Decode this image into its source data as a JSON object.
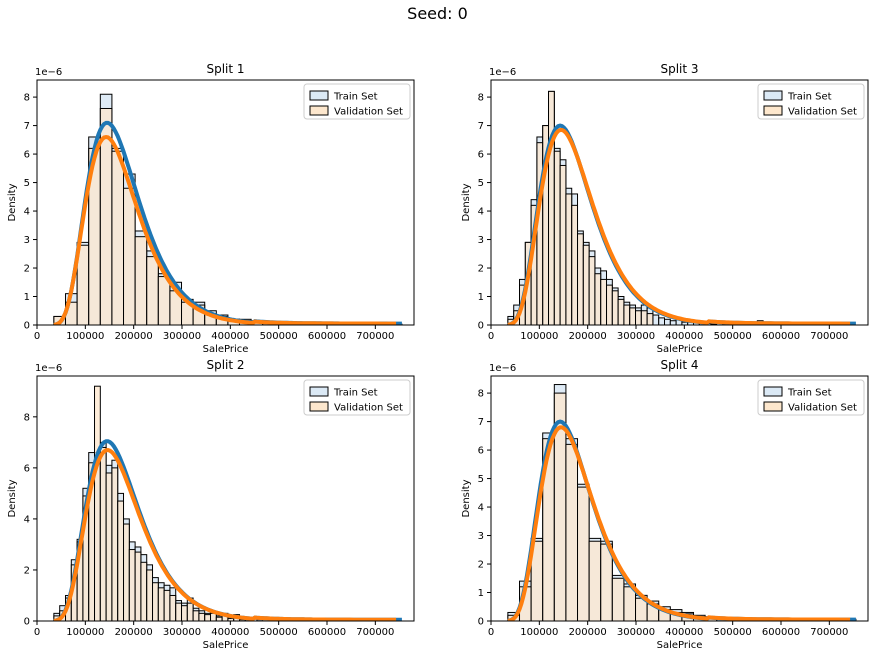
{
  "suptitle": "Seed: 0",
  "colors": {
    "train_fill": "#dbe9f5",
    "validation_fill": "#fde7cd",
    "overlap_fill": "#e5dccf",
    "train_line": "#1f77b4",
    "validation_line": "#ff7f0e"
  },
  "chart_data": [
    {
      "type": "histogram",
      "title": "Split 1",
      "xlabel": "SalePrice",
      "ylabel": "Density",
      "y_offset_text": "1e−6",
      "xlim": [
        0,
        780000
      ],
      "ylim": [
        0,
        8.6
      ],
      "xticks": [
        0,
        100000,
        200000,
        300000,
        400000,
        500000,
        600000,
        700000
      ],
      "yticks": [
        0,
        1,
        2,
        3,
        4,
        5,
        6,
        7,
        8
      ],
      "legend": {
        "position": "top-right",
        "entries": [
          "Train Set",
          "Validation Set"
        ]
      },
      "train_hist": {
        "bins": [
          [
            34900,
            0.3
          ],
          [
            59000,
            1.1
          ],
          [
            83000,
            2.9
          ],
          [
            107000,
            6.6
          ],
          [
            131000,
            8.1
          ],
          [
            155000,
            6.2
          ],
          [
            179000,
            5.3
          ],
          [
            203000,
            3.3
          ],
          [
            227000,
            2.6
          ],
          [
            251000,
            1.8
          ],
          [
            275000,
            1.5
          ],
          [
            299000,
            0.9
          ],
          [
            323000,
            0.8
          ],
          [
            347000,
            0.5
          ],
          [
            371000,
            0.35
          ],
          [
            395000,
            0.2
          ],
          [
            419000,
            0.2
          ],
          [
            443000,
            0.15
          ],
          [
            467000,
            0.05
          ],
          [
            491000,
            0.04
          ],
          [
            515000,
            0.02
          ],
          [
            539000,
            0.02
          ],
          [
            563000,
            0.02
          ],
          [
            587000,
            0.04
          ],
          [
            611000,
            0.02
          ],
          [
            635000,
            0.02
          ],
          [
            659000,
            0.0
          ],
          [
            683000,
            0.0
          ],
          [
            707000,
            0.02
          ],
          [
            731000,
            0.03
          ]
        ],
        "width": 24000
      },
      "validation_hist": {
        "bins": [
          [
            34900,
            0.3
          ],
          [
            59000,
            0.8
          ],
          [
            83000,
            2.8
          ],
          [
            107000,
            6.2
          ],
          [
            131000,
            7.6
          ],
          [
            155000,
            6.1
          ],
          [
            179000,
            4.8
          ],
          [
            203000,
            3.1
          ],
          [
            227000,
            2.4
          ],
          [
            251000,
            1.7
          ],
          [
            275000,
            1.2
          ],
          [
            299000,
            0.8
          ],
          [
            323000,
            0.7
          ],
          [
            347000,
            0.4
          ],
          [
            371000,
            0.3
          ],
          [
            395000,
            0.2
          ],
          [
            419000,
            0.15
          ],
          [
            443000,
            0.1
          ],
          [
            467000,
            0.05
          ],
          [
            491000,
            0.05
          ]
        ],
        "width": 24000
      },
      "train_kde": {
        "peak": 7.1,
        "mode": 145000
      },
      "validation_kde": {
        "peak": 6.6,
        "mode": 143000
      }
    },
    {
      "type": "histogram",
      "title": "Split 3",
      "xlabel": "SalePrice",
      "ylabel": "Density",
      "y_offset_text": "1e−6",
      "xlim": [
        0,
        780000
      ],
      "ylim": [
        0,
        8.6
      ],
      "xticks": [
        0,
        100000,
        200000,
        300000,
        400000,
        500000,
        600000,
        700000
      ],
      "yticks": [
        0,
        1,
        2,
        3,
        4,
        5,
        6,
        7,
        8
      ],
      "legend": {
        "position": "top-right",
        "entries": [
          "Train Set",
          "Validation Set"
        ]
      },
      "train_hist": {
        "bins": [
          [
            34900,
            0.3
          ],
          [
            47000,
            0.7
          ],
          [
            59000,
            1.6
          ],
          [
            71000,
            2.9
          ],
          [
            83000,
            4.4
          ],
          [
            95000,
            6.6
          ],
          [
            107000,
            7.0
          ],
          [
            119000,
            8.2
          ],
          [
            131000,
            6.2
          ],
          [
            143000,
            5.8
          ],
          [
            155000,
            4.8
          ],
          [
            167000,
            4.6
          ],
          [
            179000,
            3.3
          ],
          [
            191000,
            2.9
          ],
          [
            203000,
            2.6
          ],
          [
            215000,
            2.0
          ],
          [
            227000,
            1.9
          ],
          [
            239000,
            1.6
          ],
          [
            251000,
            1.3
          ],
          [
            263000,
            1.0
          ],
          [
            275000,
            0.8
          ],
          [
            287000,
            0.7
          ],
          [
            299000,
            0.6
          ],
          [
            311000,
            0.7
          ],
          [
            323000,
            0.6
          ],
          [
            335000,
            0.35
          ],
          [
            347000,
            0.25
          ],
          [
            359000,
            0.2
          ],
          [
            371000,
            0.15
          ],
          [
            383000,
            0.2
          ],
          [
            395000,
            0.1
          ],
          [
            407000,
            0.1
          ],
          [
            419000,
            0.07
          ],
          [
            431000,
            0.05
          ],
          [
            443000,
            0.05
          ],
          [
            455000,
            0.03
          ],
          [
            479000,
            0.02
          ],
          [
            551000,
            0.15
          ],
          [
            575000,
            0.1
          ],
          [
            611000,
            0.03
          ],
          [
            731000,
            0.03
          ]
        ],
        "width": 12000
      },
      "validation_hist": {
        "bins": [
          [
            34900,
            0.2
          ],
          [
            47000,
            0.5
          ],
          [
            59000,
            1.4
          ],
          [
            71000,
            2.9
          ],
          [
            83000,
            4.2
          ],
          [
            95000,
            6.4
          ],
          [
            107000,
            7.0
          ],
          [
            119000,
            8.2
          ],
          [
            131000,
            6.1
          ],
          [
            143000,
            5.6
          ],
          [
            155000,
            4.6
          ],
          [
            167000,
            4.2
          ],
          [
            179000,
            3.2
          ],
          [
            191000,
            2.8
          ],
          [
            203000,
            2.4
          ],
          [
            215000,
            1.8
          ],
          [
            227000,
            1.6
          ],
          [
            239000,
            1.4
          ],
          [
            251000,
            1.2
          ],
          [
            263000,
            0.9
          ],
          [
            275000,
            0.7
          ],
          [
            287000,
            0.6
          ],
          [
            299000,
            0.5
          ],
          [
            311000,
            0.5
          ],
          [
            323000,
            0.4
          ]
        ],
        "width": 12000
      },
      "train_kde": {
        "peak": 7.0,
        "mode": 143000
      },
      "validation_kde": {
        "peak": 6.85,
        "mode": 145000
      }
    },
    {
      "type": "histogram",
      "title": "Split 2",
      "xlabel": "SalePrice",
      "ylabel": "Density",
      "y_offset_text": "1e−6",
      "xlim": [
        0,
        780000
      ],
      "ylim": [
        0,
        9.6
      ],
      "xticks": [
        0,
        100000,
        200000,
        300000,
        400000,
        500000,
        600000,
        700000
      ],
      "yticks": [
        0,
        2,
        4,
        6,
        8
      ],
      "legend": {
        "position": "top-right",
        "entries": [
          "Train Set",
          "Validation Set"
        ]
      },
      "train_hist": {
        "bins": [
          [
            34900,
            0.3
          ],
          [
            47000,
            0.6
          ],
          [
            59000,
            1.0
          ],
          [
            71000,
            2.4
          ],
          [
            83000,
            3.2
          ],
          [
            95000,
            5.2
          ],
          [
            107000,
            6.6
          ],
          [
            119000,
            6.6
          ],
          [
            131000,
            7.0
          ],
          [
            143000,
            6.1
          ],
          [
            155000,
            6.3
          ],
          [
            167000,
            5.0
          ],
          [
            179000,
            4.0
          ],
          [
            191000,
            3.1
          ],
          [
            203000,
            2.9
          ],
          [
            215000,
            2.6
          ],
          [
            227000,
            2.2
          ],
          [
            239000,
            1.7
          ],
          [
            251000,
            1.5
          ],
          [
            263000,
            1.4
          ],
          [
            275000,
            1.3
          ],
          [
            287000,
            0.8
          ],
          [
            299000,
            0.7
          ],
          [
            311000,
            0.9
          ],
          [
            323000,
            0.5
          ],
          [
            335000,
            0.4
          ],
          [
            347000,
            0.3
          ],
          [
            359000,
            0.35
          ],
          [
            371000,
            0.2
          ],
          [
            383000,
            0.3
          ],
          [
            395000,
            0.15
          ],
          [
            407000,
            0.25
          ],
          [
            419000,
            0.1
          ],
          [
            455000,
            0.05
          ],
          [
            575000,
            0.05
          ],
          [
            611000,
            0.03
          ],
          [
            731000,
            0.05
          ]
        ],
        "width": 12000
      },
      "validation_hist": {
        "bins": [
          [
            34900,
            0.2
          ],
          [
            47000,
            0.4
          ],
          [
            59000,
            0.9
          ],
          [
            71000,
            2.2
          ],
          [
            83000,
            3.1
          ],
          [
            95000,
            4.9
          ],
          [
            107000,
            6.2
          ],
          [
            119000,
            9.2
          ],
          [
            131000,
            6.8
          ],
          [
            143000,
            5.8
          ],
          [
            155000,
            6.0
          ],
          [
            167000,
            4.7
          ],
          [
            179000,
            3.8
          ],
          [
            191000,
            2.8
          ],
          [
            203000,
            2.7
          ],
          [
            215000,
            2.3
          ],
          [
            227000,
            2.0
          ],
          [
            239000,
            1.5
          ],
          [
            251000,
            1.3
          ],
          [
            263000,
            1.2
          ],
          [
            275000,
            1.0
          ],
          [
            287000,
            0.7
          ],
          [
            299000,
            0.6
          ],
          [
            311000,
            0.7
          ],
          [
            323000,
            0.4
          ],
          [
            335000,
            0.3
          ],
          [
            347000,
            0.25
          ],
          [
            359000,
            0.3
          ],
          [
            371000,
            0.15
          ],
          [
            383000,
            0.25
          ],
          [
            395000,
            0.1
          ],
          [
            407000,
            0.15
          ],
          [
            419000,
            0.05
          ],
          [
            431000,
            0.05
          ]
        ],
        "width": 12000
      },
      "train_kde": {
        "peak": 7.05,
        "mode": 145000
      },
      "validation_kde": {
        "peak": 6.7,
        "mode": 146000
      }
    },
    {
      "type": "histogram",
      "title": "Split 4",
      "xlabel": "SalePrice",
      "ylabel": "Density",
      "y_offset_text": "1e−6",
      "xlim": [
        0,
        780000
      ],
      "ylim": [
        0,
        8.6
      ],
      "xticks": [
        0,
        100000,
        200000,
        300000,
        400000,
        500000,
        600000,
        700000
      ],
      "yticks": [
        0,
        1,
        2,
        3,
        4,
        5,
        6,
        7,
        8
      ],
      "legend": {
        "position": "top-right",
        "entries": [
          "Train Set",
          "Validation Set"
        ]
      },
      "train_hist": {
        "bins": [
          [
            34900,
            0.3
          ],
          [
            59000,
            1.4
          ],
          [
            83000,
            2.9
          ],
          [
            107000,
            6.6
          ],
          [
            131000,
            8.3
          ],
          [
            155000,
            6.4
          ],
          [
            179000,
            4.8
          ],
          [
            203000,
            2.9
          ],
          [
            227000,
            2.8
          ],
          [
            251000,
            1.6
          ],
          [
            275000,
            1.3
          ],
          [
            299000,
            0.9
          ],
          [
            323000,
            0.7
          ],
          [
            347000,
            0.5
          ],
          [
            371000,
            0.4
          ],
          [
            395000,
            0.3
          ],
          [
            419000,
            0.2
          ],
          [
            443000,
            0.15
          ],
          [
            467000,
            0.05
          ],
          [
            563000,
            0.05
          ],
          [
            587000,
            0.02
          ],
          [
            611000,
            0.02
          ],
          [
            731000,
            0.06
          ]
        ],
        "width": 24000
      },
      "validation_hist": {
        "bins": [
          [
            34900,
            0.2
          ],
          [
            59000,
            1.2
          ],
          [
            83000,
            2.8
          ],
          [
            107000,
            6.4
          ],
          [
            131000,
            8.0
          ],
          [
            155000,
            6.2
          ],
          [
            179000,
            4.7
          ],
          [
            203000,
            2.8
          ],
          [
            227000,
            2.7
          ],
          [
            251000,
            1.5
          ],
          [
            275000,
            1.2
          ],
          [
            299000,
            0.8
          ],
          [
            323000,
            0.6
          ],
          [
            347000,
            0.4
          ],
          [
            371000,
            0.3
          ],
          [
            395000,
            0.25
          ],
          [
            419000,
            0.15
          ],
          [
            443000,
            0.1
          ]
        ],
        "width": 24000
      },
      "train_kde": {
        "peak": 7.0,
        "mode": 143000
      },
      "validation_kde": {
        "peak": 6.8,
        "mode": 145000
      }
    }
  ]
}
